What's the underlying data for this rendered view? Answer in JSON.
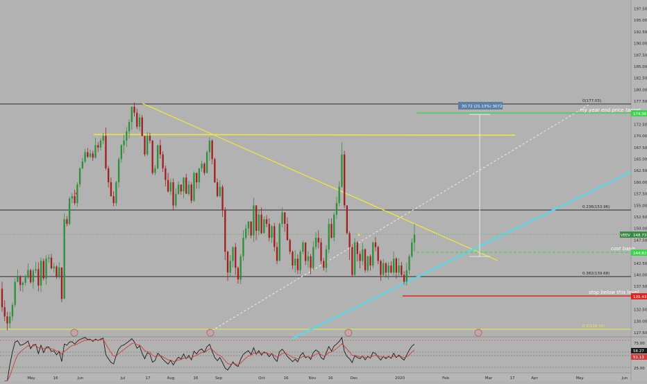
{
  "chart_data": {
    "type": "candlestick",
    "symbol": "VEEV",
    "price_axis": {
      "ticks": [
        "197.50",
        "195.00",
        "192.50",
        "190.00",
        "187.50",
        "185.00",
        "182.50",
        "180.00",
        "177.50",
        "175.00",
        "172.50",
        "170.00",
        "167.50",
        "165.00",
        "162.50",
        "160.00",
        "157.50",
        "155.00",
        "152.50",
        "150.00",
        "147.50",
        "145.00",
        "142.50",
        "140.00",
        "137.50",
        "135.00",
        "132.50",
        "130.00",
        "127.50"
      ],
      "ylim": [
        126,
        199
      ]
    },
    "time_axis": {
      "labels": [
        "May",
        "16",
        "Jun",
        "Jul",
        "17",
        "Aug",
        "16",
        "Sep",
        "Oct",
        "16",
        "Nov",
        "16",
        "Dec",
        "2020",
        "Feb",
        "Mar",
        "17",
        "Apr",
        "May",
        "Jun"
      ]
    },
    "price_badges": {
      "target": "174.96",
      "last": "148.73",
      "cost_basis": "144.82",
      "stop": "135.43"
    },
    "fib_levels": [
      {
        "label": "0(177.03)",
        "value": 177.03
      },
      {
        "label": "0.236(153.96)",
        "value": 153.96
      },
      {
        "label": "0.382(139.68)",
        "value": 139.68
      },
      {
        "label": "0.5(128.15)",
        "value": 128.15
      }
    ],
    "annotations": {
      "year_end_target": "my year end price target",
      "cost_basis": "cost basis",
      "stop": "stop below this level",
      "measure": "30.72 (21.13%) 3072"
    },
    "candles": [
      [
        137.0,
        133.0,
        138.5,
        132.0
      ],
      [
        133.0,
        131.0,
        134.5,
        130.0
      ],
      [
        131.0,
        129.5,
        132.0,
        128.0
      ],
      [
        129.5,
        131.0,
        132.0,
        128.5
      ],
      [
        131.0,
        133.5,
        134.0,
        130.0
      ],
      [
        133.5,
        138.5,
        139.2,
        133.0
      ],
      [
        138.5,
        139.5,
        141.1,
        138.4
      ],
      [
        139.5,
        137.8,
        139.9,
        136.5
      ],
      [
        137.8,
        138.3,
        138.6,
        136.3
      ],
      [
        138.3,
        139.4,
        140.0,
        137.7
      ],
      [
        139.4,
        141.0,
        142.5,
        139.1
      ],
      [
        141.0,
        138.4,
        141.3,
        138.1
      ],
      [
        138.4,
        140.9,
        141.3,
        137.0
      ],
      [
        140.9,
        141.2,
        142.8,
        140.3
      ],
      [
        141.2,
        137.7,
        142.7,
        136.4
      ],
      [
        137.7,
        143.0,
        143.7,
        136.3
      ],
      [
        143.0,
        139.2,
        143.5,
        138.8
      ],
      [
        139.2,
        143.5,
        144.2,
        137.8
      ],
      [
        143.5,
        143.7,
        144.4,
        142.6
      ],
      [
        143.7,
        141.4,
        144.5,
        141.2
      ],
      [
        141.4,
        141.8,
        142.6,
        140.5
      ],
      [
        141.8,
        139.7,
        142.1,
        139.1
      ],
      [
        139.7,
        141.6,
        142.7,
        139.2
      ],
      [
        141.6,
        134.8,
        141.6,
        134.1
      ],
      [
        134.8,
        152.0,
        153.3,
        134.8
      ],
      [
        152.0,
        151.0,
        152.7,
        150.5
      ],
      [
        151.0,
        156.5,
        156.9,
        150.7
      ],
      [
        156.5,
        157.0,
        157.6,
        155.5
      ],
      [
        157.0,
        155.5,
        158.4,
        155.1
      ],
      [
        155.5,
        159.5,
        160.0,
        154.7
      ],
      [
        159.5,
        163.0,
        163.2,
        158.9
      ],
      [
        163.0,
        164.5,
        165.3,
        162.8
      ],
      [
        164.5,
        166.5,
        167.2,
        164.1
      ],
      [
        166.5,
        165.5,
        167.4,
        165.2
      ],
      [
        165.5,
        166.2,
        167.0,
        165.2
      ],
      [
        166.2,
        165.3,
        166.8,
        164.6
      ],
      [
        165.3,
        168.0,
        169.6,
        165.1
      ],
      [
        168.0,
        167.5,
        168.7,
        166.5
      ],
      [
        167.5,
        169.0,
        169.5,
        166.9
      ],
      [
        169.0,
        170.0,
        170.6,
        168.2
      ],
      [
        170.0,
        163.0,
        171.8,
        162.6
      ],
      [
        163.0,
        160.0,
        163.5,
        158.9
      ],
      [
        160.0,
        157.0,
        161.1,
        156.9
      ],
      [
        157.0,
        155.5,
        158.1,
        154.8
      ],
      [
        155.5,
        160.0,
        160.3,
        154.9
      ],
      [
        160.0,
        165.0,
        165.5,
        158.8
      ],
      [
        165.0,
        168.0,
        168.2,
        164.2
      ],
      [
        168.0,
        169.0,
        170.3,
        166.3
      ],
      [
        169.0,
        171.0,
        171.9,
        167.6
      ],
      [
        171.0,
        173.0,
        173.6,
        169.5
      ],
      [
        173.0,
        176.3,
        176.4,
        171.3
      ],
      [
        176.3,
        175.0,
        177.2,
        174.2
      ],
      [
        175.0,
        172.0,
        175.9,
        171.5
      ],
      [
        172.0,
        174.0,
        174.8,
        171.1
      ],
      [
        174.0,
        170.0,
        174.5,
        169.9
      ],
      [
        170.0,
        166.0,
        170.0,
        165.6
      ],
      [
        166.0,
        170.0,
        170.8,
        165.7
      ],
      [
        170.0,
        169.0,
        170.7,
        168.4
      ],
      [
        169.0,
        162.0,
        169.1,
        161.6
      ],
      [
        162.0,
        163.0,
        163.7,
        161.5
      ],
      [
        163.0,
        168.0,
        168.1,
        162.8
      ],
      [
        168.0,
        166.0,
        169.2,
        165.1
      ],
      [
        166.0,
        163.0,
        166.7,
        162.2
      ],
      [
        163.0,
        160.5,
        163.6,
        159.1
      ],
      [
        160.5,
        158.0,
        162.0,
        157.8
      ],
      [
        158.0,
        160.0,
        160.7,
        157.3
      ],
      [
        160.0,
        155.0,
        160.8,
        153.9
      ],
      [
        155.0,
        157.5,
        158.7,
        154.5
      ],
      [
        157.5,
        159.5,
        160.2,
        157.3
      ],
      [
        159.5,
        158.0,
        159.5,
        157.3
      ],
      [
        158.0,
        161.0,
        161.1,
        156.6
      ],
      [
        161.0,
        157.5,
        161.8,
        157.5
      ],
      [
        157.5,
        159.5,
        160.3,
        157.1
      ],
      [
        159.5,
        156.0,
        160.0,
        155.5
      ],
      [
        156.0,
        162.0,
        162.3,
        155.8
      ],
      [
        162.0,
        160.0,
        162.1,
        158.6
      ],
      [
        160.0,
        163.0,
        163.1,
        158.6
      ],
      [
        163.0,
        164.0,
        164.7,
        162.3
      ],
      [
        164.0,
        162.0,
        164.3,
        161.5
      ],
      [
        162.0,
        166.5,
        166.9,
        161.9
      ],
      [
        166.5,
        169.0,
        169.7,
        164.7
      ],
      [
        169.0,
        165.0,
        169.3,
        163.9
      ],
      [
        165.0,
        160.0,
        165.3,
        159.8
      ],
      [
        160.0,
        157.0,
        160.8,
        156.7
      ],
      [
        157.0,
        159.0,
        160.4,
        156.7
      ],
      [
        159.0,
        154.0,
        159.4,
        152.5
      ],
      [
        154.0,
        145.0,
        154.6,
        143.2
      ],
      [
        145.0,
        140.5,
        145.2,
        138.7
      ],
      [
        140.5,
        143.0,
        144.2,
        139.6
      ],
      [
        143.0,
        146.0,
        146.1,
        141.6
      ],
      [
        146.0,
        141.5,
        146.9,
        140.0
      ],
      [
        141.5,
        139.0,
        141.8,
        138.1
      ],
      [
        139.0,
        144.0,
        144.5,
        138.0
      ],
      [
        144.0,
        148.0,
        149.7,
        143.0
      ],
      [
        148.0,
        150.0,
        150.9,
        147.6
      ],
      [
        150.0,
        151.5,
        151.6,
        148.5
      ],
      [
        151.5,
        148.5,
        151.6,
        147.9
      ],
      [
        148.5,
        155.0,
        156.6,
        147.1
      ],
      [
        155.0,
        149.5,
        155.0,
        147.5
      ],
      [
        149.5,
        153.0,
        153.8,
        148.5
      ],
      [
        153.0,
        149.0,
        154.5,
        148.8
      ],
      [
        149.0,
        152.0,
        152.6,
        148.9
      ],
      [
        152.0,
        151.0,
        152.9,
        150.3
      ],
      [
        151.0,
        148.0,
        152.2,
        147.2
      ],
      [
        148.0,
        150.5,
        150.8,
        146.9
      ],
      [
        150.5,
        146.0,
        151.2,
        145.1
      ],
      [
        146.0,
        143.0,
        147.0,
        142.3
      ],
      [
        143.0,
        151.0,
        151.3,
        143.0
      ],
      [
        151.0,
        153.5,
        154.5,
        150.3
      ],
      [
        153.5,
        151.0,
        153.5,
        149.3
      ],
      [
        151.0,
        147.5,
        152.4,
        147.4
      ],
      [
        147.5,
        145.0,
        147.8,
        144.4
      ],
      [
        145.0,
        142.0,
        145.3,
        141.2
      ],
      [
        142.0,
        143.5,
        145.3,
        140.5
      ],
      [
        143.5,
        141.0,
        144.4,
        140.2
      ],
      [
        141.0,
        145.0,
        145.4,
        140.1
      ],
      [
        145.0,
        147.0,
        147.4,
        144.4
      ],
      [
        147.0,
        143.0,
        147.0,
        142.1
      ],
      [
        143.0,
        144.0,
        145.1,
        141.6
      ],
      [
        144.0,
        141.5,
        144.5,
        140.1
      ],
      [
        141.5,
        146.0,
        147.3,
        140.9
      ],
      [
        146.0,
        148.0,
        149.2,
        145.4
      ],
      [
        148.0,
        147.0,
        149.6,
        145.7
      ],
      [
        147.0,
        143.0,
        147.9,
        142.3
      ],
      [
        143.0,
        141.5,
        143.6,
        140.9
      ],
      [
        141.5,
        145.5,
        146.4,
        140.5
      ],
      [
        145.5,
        151.0,
        152.2,
        144.7
      ],
      [
        151.0,
        148.0,
        152.2,
        147.8
      ],
      [
        148.0,
        153.0,
        153.5,
        147.2
      ],
      [
        153.0,
        155.5,
        156.9,
        152.1
      ],
      [
        155.5,
        159.0,
        160.2,
        154.8
      ],
      [
        159.0,
        166.0,
        168.7,
        158.8
      ],
      [
        166.0,
        155.0,
        166.8,
        154.4
      ],
      [
        155.0,
        149.0,
        155.0,
        148.7
      ],
      [
        149.0,
        146.0,
        149.4,
        143.2
      ],
      [
        146.0,
        140.0,
        146.6,
        139.5
      ],
      [
        140.0,
        147.0,
        147.9,
        139.6
      ],
      [
        147.0,
        144.5,
        147.3,
        142.9
      ],
      [
        144.5,
        143.0,
        145.1,
        141.4
      ],
      [
        143.0,
        145.5,
        146.9,
        142.1
      ],
      [
        145.5,
        141.0,
        145.7,
        140.5
      ],
      [
        141.0,
        144.0,
        144.1,
        140.5
      ],
      [
        144.0,
        142.0,
        144.4,
        140.9
      ],
      [
        142.0,
        147.0,
        147.2,
        141.4
      ],
      [
        147.0,
        146.0,
        148.2,
        145.1
      ],
      [
        146.0,
        143.0,
        146.3,
        142.3
      ],
      [
        143.0,
        140.0,
        143.3,
        138.7
      ],
      [
        140.0,
        142.5,
        143.4,
        139.5
      ],
      [
        142.5,
        140.5,
        142.7,
        139.4
      ],
      [
        140.5,
        142.0,
        142.7,
        139.0
      ],
      [
        142.0,
        140.5,
        142.9,
        140.3
      ],
      [
        140.5,
        143.5,
        145.0,
        139.9
      ],
      [
        143.5,
        140.5,
        143.8,
        139.2
      ],
      [
        140.5,
        142.0,
        143.6,
        139.6
      ],
      [
        142.0,
        140.0,
        142.8,
        139.5
      ],
      [
        140.0,
        138.5,
        140.8,
        137.9
      ],
      [
        138.5,
        141.0,
        142.6,
        137.7
      ],
      [
        141.0,
        144.0,
        144.4,
        140.1
      ],
      [
        144.0,
        147.0,
        147.9,
        143.6
      ],
      [
        147.0,
        148.7,
        151.0,
        145.0
      ]
    ]
  }
}
